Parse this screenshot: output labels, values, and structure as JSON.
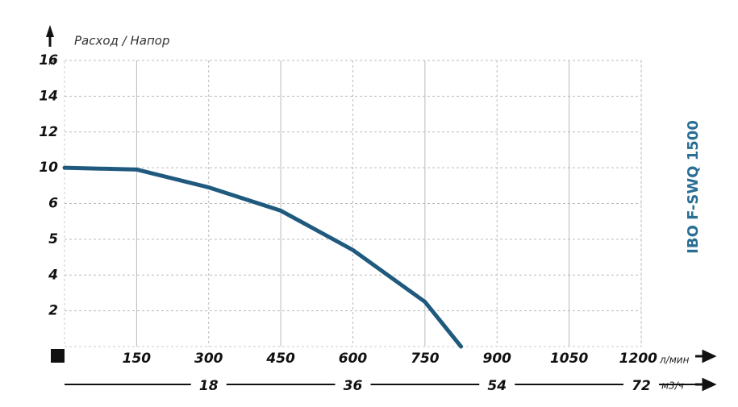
{
  "chart_data": {
    "type": "line",
    "title": "IBO F-SWQ 1500",
    "y_axis_label": "Расход / Напор",
    "y_unit": "м",
    "x_unit": "л/мин",
    "x2_unit": "м3/ч",
    "x": [
      0,
      150,
      300,
      450,
      600,
      750,
      825
    ],
    "series": [
      {
        "color": "#1f5a7e",
        "values": [
          10,
          9.8,
          7.8,
          5.8,
          4.7,
          2.5,
          0
        ]
      }
    ],
    "xlim": [
      0,
      1200
    ],
    "xticks": [
      150,
      300,
      450,
      600,
      750,
      900,
      1050,
      1200
    ],
    "x2lim": [
      0,
      72
    ],
    "x2ticks": [
      18,
      36,
      54,
      72
    ],
    "ylim": [
      0,
      16
    ],
    "yticks": [
      2,
      4,
      5,
      6,
      10,
      12,
      14,
      16
    ],
    "grid": true
  }
}
